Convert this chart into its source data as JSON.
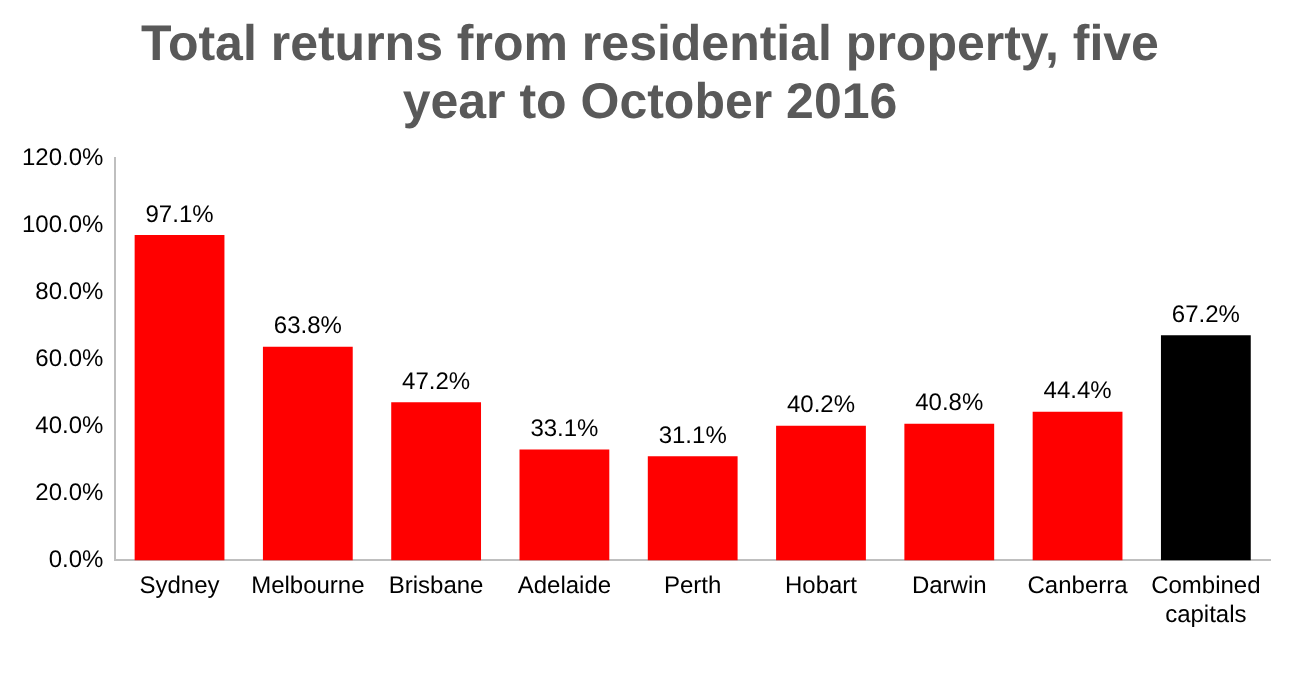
{
  "chart_data": {
    "type": "bar",
    "title": "Total returns from residential property, five year to October 2016",
    "categories": [
      "Sydney",
      "Melbourne",
      "Brisbane",
      "Adelaide",
      "Perth",
      "Hobart",
      "Darwin",
      "Canberra",
      "Combined capitals"
    ],
    "values": [
      97.1,
      63.8,
      47.2,
      33.1,
      31.1,
      40.2,
      40.8,
      44.4,
      67.2
    ],
    "colors": [
      "#ff0000",
      "#ff0000",
      "#ff0000",
      "#ff0000",
      "#ff0000",
      "#ff0000",
      "#ff0000",
      "#ff0000",
      "#000000"
    ],
    "value_labels": [
      "97.1%",
      "63.8%",
      "47.2%",
      "33.1%",
      "31.1%",
      "40.2%",
      "40.8%",
      "44.4%",
      "67.2%"
    ],
    "ylim": [
      0,
      120
    ],
    "yticks": [
      {
        "value": 0,
        "label": "0.0%"
      },
      {
        "value": 20,
        "label": "20.0%"
      },
      {
        "value": 40,
        "label": "40.0%"
      },
      {
        "value": 60,
        "label": "60.0%"
      },
      {
        "value": 80,
        "label": "80.0%"
      },
      {
        "value": 100,
        "label": "100.0%"
      },
      {
        "value": 120,
        "label": "120.0%"
      }
    ],
    "grid": false,
    "legend": false
  }
}
